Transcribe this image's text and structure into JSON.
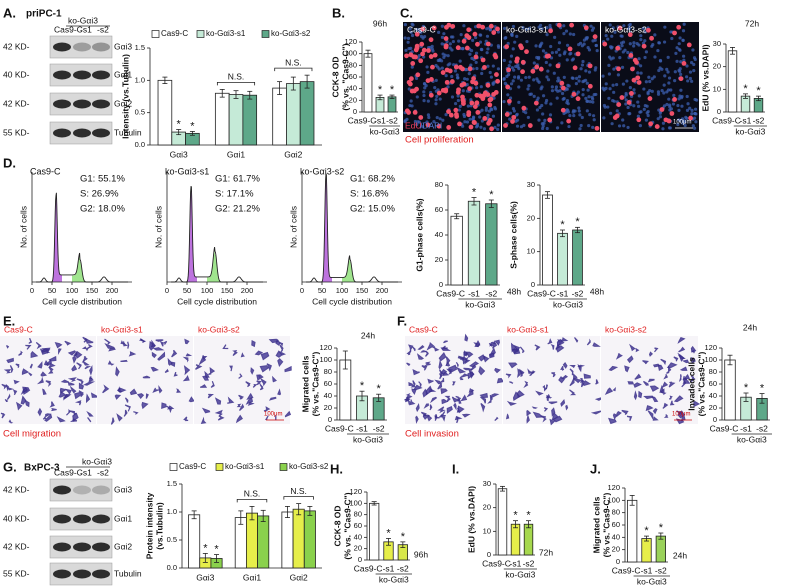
{
  "panel_labels": [
    "A.",
    "B.",
    "C.",
    "D.",
    "E.",
    "F.",
    "G.",
    "H.",
    "I.",
    "J."
  ],
  "blots": [
    {
      "cell": "priPC-1",
      "group": "ko-Gαi3",
      "lanes": [
        "Cas9-C",
        "-s1",
        "-s2"
      ],
      "rows": [
        {
          "size": "42 KD-",
          "protein": "Gαi3"
        },
        {
          "size": "40 KD-",
          "protein": "Gαi1"
        },
        {
          "size": "42 KD-",
          "protein": "Gαi2"
        },
        {
          "size": "55 KD-",
          "protein": "Tubulin"
        }
      ]
    },
    {
      "cell": "BxPC-3",
      "group": "ko-Gαi3",
      "lanes": [
        "Cas9-C",
        "-s1",
        "-s2"
      ],
      "rows": [
        {
          "size": "42 KD-",
          "protein": "Gαi3"
        },
        {
          "size": "40 KD-",
          "protein": "Gαi1"
        },
        {
          "size": "42 KD-",
          "protein": "Gαi2"
        },
        {
          "size": "55 KD-",
          "protein": "Tubulin"
        }
      ]
    }
  ],
  "images": [
    {
      "titles": [
        "Cas9-C",
        "ko-Gαi3-s1",
        "ko-Gαi3-s2"
      ],
      "overlay": [
        "EdU",
        "/DAPI"
      ],
      "caption": "Cell proliferation",
      "scale": "100μm"
    },
    {
      "titles": [
        "Cas9-C",
        "ko-Gαi3-s1",
        "ko-Gαi3-s2"
      ],
      "caption": "Cell migration",
      "scale": "100μm"
    },
    {
      "titles": [
        "Cas9-C",
        "ko-Gαi3-s1",
        "ko-Gαi3-s2"
      ],
      "caption": "Cell invasion",
      "scale": "100μm"
    }
  ],
  "flow": {
    "ylabel": "No. of cells",
    "xlabel": "Cell cycle distribution",
    "xlim": [
      0,
      250
    ],
    "xticks": [
      0,
      50,
      100,
      150,
      200
    ],
    "panels": [
      {
        "title": "Cas9-C",
        "stats": [
          "G1: 55.1%",
          "S: 26.9%",
          "G2: 18.0%"
        ]
      },
      {
        "title": "ko-Gαi3-s1",
        "stats": [
          "G1: 61.7%",
          "S: 17.1%",
          "G2: 21.2%"
        ]
      },
      {
        "title": "ko-Gαi3-s2",
        "stats": [
          "G1: 68.2%",
          "S: 16.8%",
          "G2: 15.0%"
        ]
      }
    ]
  },
  "chart_data": [
    {
      "type": "bar",
      "ylabel": [
        "Intensity (vs.Tubulin)"
      ],
      "categories": [
        "Gαi3",
        "Gαi1",
        "Gαi2"
      ],
      "ylim": [
        0,
        1.5
      ],
      "yticks": [
        {
          "value": 0,
          "label": "0.0"
        },
        0.5,
        {
          "value": 1,
          "label": "1.0"
        },
        1.5
      ],
      "series": [
        {
          "name": "Cas9-C",
          "color": "#ffffff",
          "values": [
            1,
            0.8,
            0.88
          ],
          "errors": [
            0.05,
            0.06,
            0.1
          ],
          "bar_labels": [
            null,
            null,
            null
          ]
        },
        {
          "name": "ko-Gαi3-s1",
          "color": "#c5ead7",
          "values": [
            0.2,
            0.78,
            0.95
          ],
          "errors": [
            0.04,
            0.06,
            0.1
          ],
          "bar_labels": [
            "*",
            null,
            null
          ]
        },
        {
          "name": "ko-Gαi3-s2",
          "color": "#5ea889",
          "values": [
            0.18,
            0.77,
            0.98
          ],
          "errors": [
            0.03,
            0.06,
            0.1
          ],
          "bar_labels": [
            "*",
            null,
            null
          ]
        }
      ],
      "group_labels": [
        null,
        "N.S.",
        "N.S."
      ]
    },
    {
      "type": "bar",
      "title": "96h",
      "ylabel": [
        "CCK-8 OD",
        "(% vs. \"Cas9-C\")"
      ],
      "categories": [
        "Cas9-C",
        "-s1",
        "-s2"
      ],
      "group_label": "ko-Gαi3",
      "values": [
        100,
        25,
        26
      ],
      "errors": [
        6,
        4,
        3
      ],
      "bar_labels": [
        null,
        "*",
        "*"
      ],
      "colors": [
        "#ffffff",
        "#c5ead7",
        "#5ea889"
      ],
      "ylim": [
        0,
        120
      ],
      "yticks": [
        0,
        20,
        40,
        60,
        80,
        100,
        120
      ]
    },
    {
      "type": "bar",
      "title": "72h",
      "ylabel": [
        "EdU (% vs.DAPI)"
      ],
      "categories": [
        "Cas9-C",
        "-s1",
        "-s2"
      ],
      "group_label": "ko-Gαi3",
      "values": [
        27,
        7,
        6
      ],
      "errors": [
        1.5,
        1,
        1
      ],
      "bar_labels": [
        null,
        "*",
        "*"
      ],
      "colors": [
        "#ffffff",
        "#c5ead7",
        "#5ea889"
      ],
      "ylim": [
        0,
        30
      ],
      "yticks": [
        0,
        10,
        20,
        30
      ]
    },
    {
      "type": "bar",
      "title": "48h",
      "ylabel": [
        "G1-phase cells(%)"
      ],
      "categories": [
        "Cas9-C",
        "-s1",
        "-s2"
      ],
      "group_label": "ko-Gαi3",
      "values": [
        55,
        67,
        65
      ],
      "errors": [
        2,
        3,
        3
      ],
      "bar_labels": [
        null,
        "*",
        "*"
      ],
      "colors": [
        "#ffffff",
        "#c5ead7",
        "#5ea889"
      ],
      "ylim": [
        0,
        80
      ],
      "yticks": [
        0,
        20,
        40,
        60,
        80
      ]
    },
    {
      "type": "bar",
      "title": "48h",
      "ylabel": [
        "S-phase cells(%)"
      ],
      "categories": [
        "Cas9-C",
        "-s1",
        "-s2"
      ],
      "group_label": "ko-Gαi3",
      "values": [
        27,
        15.5,
        16.5
      ],
      "errors": [
        1,
        1,
        0.8
      ],
      "bar_labels": [
        null,
        "*",
        "*"
      ],
      "colors": [
        "#ffffff",
        "#c5ead7",
        "#5ea889"
      ],
      "ylim": [
        0,
        30
      ],
      "yticks": [
        0,
        10,
        20,
        30
      ]
    },
    {
      "type": "bar",
      "title": "24h",
      "ylabel": [
        "Migrated cells",
        "(% vs.\"Cas9-C\")"
      ],
      "categories": [
        "Cas9-C",
        "-s1",
        "-s2"
      ],
      "group_label": "ko-Gαi3",
      "values": [
        100,
        40,
        37
      ],
      "errors": [
        15,
        8,
        6
      ],
      "bar_labels": [
        null,
        "*",
        "*"
      ],
      "colors": [
        "#ffffff",
        "#c5ead7",
        "#5ea889"
      ],
      "ylim": [
        0,
        120
      ],
      "yticks": [
        0,
        20,
        40,
        60,
        80,
        100,
        120
      ]
    },
    {
      "type": "bar",
      "title": "24h",
      "ylabel": [
        "Invaded cells",
        "(% vs.\"Cas9-C\")"
      ],
      "categories": [
        "Cas9-C",
        "-s1",
        "-s2"
      ],
      "group_label": "ko-Gαi3",
      "values": [
        100,
        38,
        36
      ],
      "errors": [
        8,
        7,
        8
      ],
      "bar_labels": [
        null,
        "*",
        "*"
      ],
      "colors": [
        "#ffffff",
        "#c5ead7",
        "#5ea889"
      ],
      "ylim": [
        0,
        120
      ],
      "yticks": [
        0,
        20,
        40,
        60,
        80,
        100,
        120
      ]
    },
    {
      "type": "bar",
      "ylabel": [
        "Protein intensity",
        "(vs.Tubulin)"
      ],
      "categories": [
        "Gαi3",
        "Gαi1",
        "Gαi2"
      ],
      "ylim": [
        0,
        1.5
      ],
      "yticks": [
        {
          "value": 0,
          "label": "0.0"
        },
        0.5,
        {
          "value": 1,
          "label": "1.0"
        },
        1.5
      ],
      "series": [
        {
          "name": "Cas9-C",
          "color": "#ffffff",
          "values": [
            0.95,
            0.9,
            1
          ],
          "errors": [
            0.07,
            0.12,
            0.1
          ],
          "bar_labels": [
            null,
            null,
            null
          ]
        },
        {
          "name": "ko-Gαi3-s1",
          "color": "#e6ee4a",
          "values": [
            0.18,
            0.98,
            1.05
          ],
          "errors": [
            0.08,
            0.12,
            0.1
          ],
          "bar_labels": [
            "*",
            null,
            null
          ]
        },
        {
          "name": "ko-Gαi3-s2",
          "color": "#8ad14c",
          "values": [
            0.17,
            0.93,
            1.02
          ],
          "errors": [
            0.07,
            0.1,
            0.08
          ],
          "bar_labels": [
            "*",
            null,
            null
          ]
        }
      ],
      "group_labels": [
        null,
        "N.S.",
        "N.S."
      ]
    },
    {
      "type": "bar",
      "title": "96h",
      "ylabel": [
        "CCK-8 OD",
        "(% vs. \"Cas9-C\")"
      ],
      "categories": [
        "Cas9-C",
        "-s1",
        "-s2"
      ],
      "group_label": "ko-Gαi3",
      "values": [
        100,
        32,
        27
      ],
      "errors": [
        3,
        6,
        5
      ],
      "bar_labels": [
        null,
        "*",
        "*"
      ],
      "colors": [
        "#ffffff",
        "#e6ee4a",
        "#d8e84a"
      ],
      "ylim": [
        0,
        120
      ],
      "yticks": [
        0,
        20,
        40,
        60,
        80,
        100,
        120
      ]
    },
    {
      "type": "bar",
      "title": "72h",
      "ylabel": [
        "EdU (% vs.DAPI)"
      ],
      "categories": [
        "Cas9-C",
        "-s1",
        "-s2"
      ],
      "group_label": "ko-Gαi3",
      "values": [
        28,
        13,
        13
      ],
      "errors": [
        1,
        1.5,
        1.5
      ],
      "bar_labels": [
        null,
        "*",
        "*"
      ],
      "colors": [
        "#ffffff",
        "#e6ee4a",
        "#a6d84e"
      ],
      "ylim": [
        0,
        30
      ],
      "yticks": [
        0,
        10,
        20,
        30
      ]
    },
    {
      "type": "bar",
      "title": "24h",
      "ylabel": [
        "Migrated cells",
        "(% vs.\"Cas9-C\")"
      ],
      "categories": [
        "Cas9-C",
        "-s1",
        "-s2"
      ],
      "group_label": "ko-Gαi3",
      "values": [
        100,
        38,
        42
      ],
      "errors": [
        8,
        4,
        5
      ],
      "bar_labels": [
        null,
        "*",
        "*"
      ],
      "colors": [
        "#ffffff",
        "#e6ee4a",
        "#9ad25a"
      ],
      "ylim": [
        0,
        120
      ],
      "yticks": [
        0,
        20,
        40,
        60,
        80,
        100,
        120
      ]
    }
  ]
}
